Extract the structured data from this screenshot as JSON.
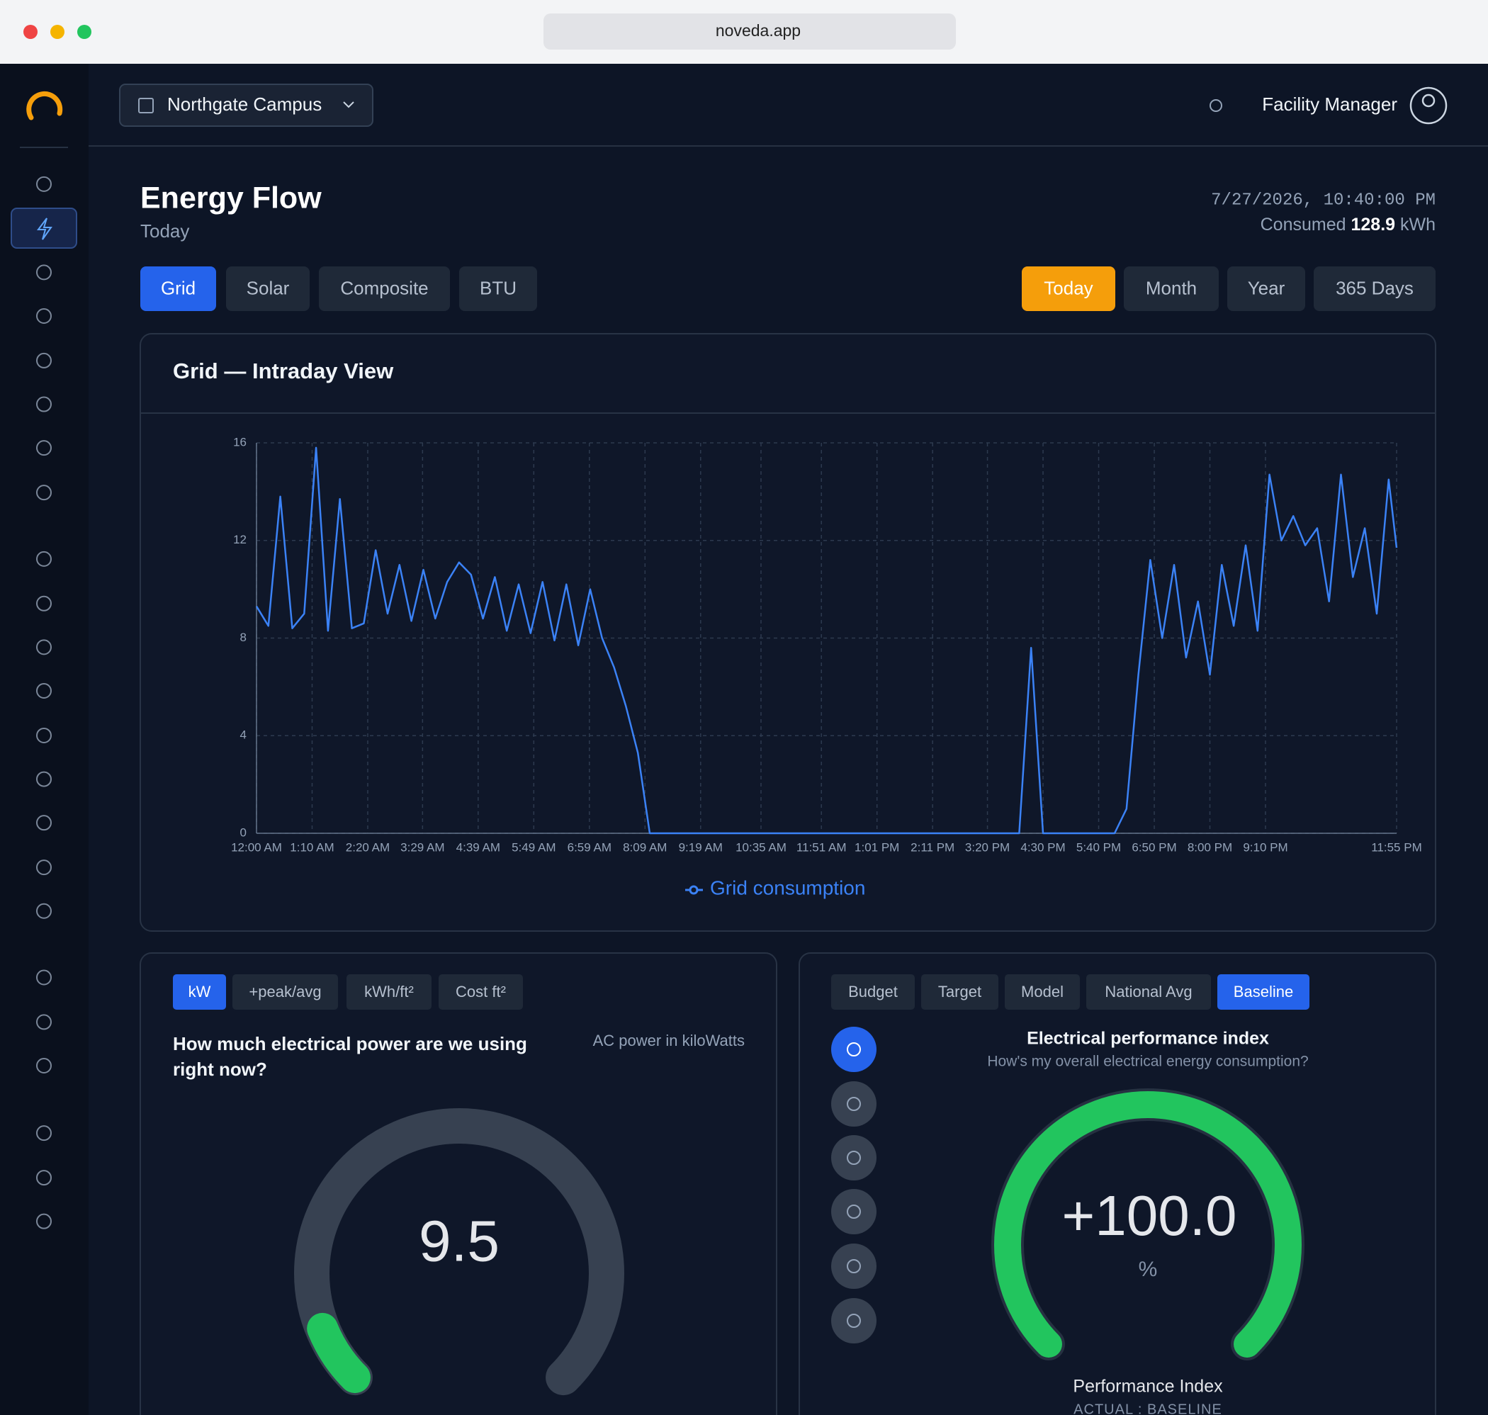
{
  "browser": {
    "url": "noveda.app"
  },
  "header": {
    "site": "Northgate Campus",
    "user": "Facility Manager"
  },
  "page": {
    "title": "Energy Flow",
    "subtitle": "Today",
    "timestamp": "7/27/2026, 10:40:00 PM",
    "consumed_label": "Consumed",
    "consumed_value": "128.9",
    "consumed_unit": "kWh"
  },
  "source_tabs": [
    "Grid",
    "Solar",
    "Composite",
    "BTU"
  ],
  "period_tabs": [
    "Today",
    "Month",
    "Year",
    "365 Days"
  ],
  "chart_data": {
    "type": "line",
    "title": "Grid — Intraday View",
    "x": [
      0,
      15,
      30,
      45,
      60,
      75,
      90,
      105,
      120,
      135,
      150,
      165,
      180,
      195,
      210,
      225,
      240,
      255,
      270,
      285,
      300,
      315,
      330,
      345,
      360,
      375,
      390,
      405,
      420,
      435,
      450,
      465,
      480,
      495,
      510,
      525,
      540,
      555,
      570,
      585,
      600,
      615,
      630,
      645,
      660,
      675,
      690,
      705,
      720,
      735,
      750,
      765,
      780,
      795,
      810,
      825,
      840,
      855,
      870,
      885,
      900,
      915,
      930,
      945,
      960,
      975,
      990,
      1005,
      1020,
      1035,
      1050,
      1065,
      1080,
      1095,
      1110,
      1125,
      1140,
      1155,
      1170,
      1185,
      1200,
      1215,
      1230,
      1245,
      1260,
      1275,
      1290,
      1305,
      1320,
      1335,
      1350,
      1365,
      1380,
      1395,
      1410,
      1425,
      1435
    ],
    "series": [
      {
        "name": "Grid consumption",
        "color": "#3b82f6",
        "values": [
          9.3,
          8.5,
          13.8,
          8.4,
          9.0,
          15.8,
          8.3,
          13.7,
          8.4,
          8.6,
          11.6,
          9.0,
          11.0,
          8.7,
          10.8,
          8.8,
          10.3,
          11.1,
          10.6,
          8.8,
          10.5,
          8.3,
          10.2,
          8.2,
          10.3,
          7.9,
          10.2,
          7.7,
          10.0,
          8.0,
          6.8,
          5.2,
          3.3,
          0,
          0,
          0,
          0,
          0,
          0,
          0,
          0,
          0,
          0,
          0,
          0,
          0,
          0,
          0,
          0,
          0,
          0,
          0,
          0,
          0,
          0,
          0,
          0,
          0,
          0,
          0,
          0,
          0,
          0,
          0,
          0,
          7.6,
          0,
          0,
          0,
          0,
          0,
          0,
          0,
          1.0,
          6.5,
          11.2,
          8.0,
          11.0,
          7.2,
          9.5,
          6.5,
          11.0,
          8.5,
          11.8,
          8.3,
          14.7,
          12.0,
          13.0,
          11.8,
          12.5,
          9.5,
          14.7,
          10.5,
          12.5,
          9.0,
          14.5,
          11.7
        ]
      }
    ],
    "xlim": [
      0,
      1435
    ],
    "ylim": [
      0,
      16
    ],
    "yticks": [
      0,
      4,
      8,
      12,
      16
    ],
    "xticks": [
      {
        "value": 0,
        "label": "12:00 AM"
      },
      {
        "value": 70,
        "label": "1:10 AM"
      },
      {
        "value": 140,
        "label": "2:20 AM"
      },
      {
        "value": 209,
        "label": "3:29 AM"
      },
      {
        "value": 279,
        "label": "4:39 AM"
      },
      {
        "value": 349,
        "label": "5:49 AM"
      },
      {
        "value": 419,
        "label": "6:59 AM"
      },
      {
        "value": 489,
        "label": "8:09 AM"
      },
      {
        "value": 559,
        "label": "9:19 AM"
      },
      {
        "value": 635,
        "label": "10:35 AM"
      },
      {
        "value": 711,
        "label": "11:51 AM"
      },
      {
        "value": 781,
        "label": "1:01 PM"
      },
      {
        "value": 851,
        "label": "2:11 PM"
      },
      {
        "value": 920,
        "label": "3:20 PM"
      },
      {
        "value": 990,
        "label": "4:30 PM"
      },
      {
        "value": 1060,
        "label": "5:40 PM"
      },
      {
        "value": 1130,
        "label": "6:50 PM"
      },
      {
        "value": 1200,
        "label": "8:00 PM"
      },
      {
        "value": 1270,
        "label": "9:10 PM"
      },
      {
        "value": 1435,
        "label": "11:55 PM"
      }
    ],
    "grid": true
  },
  "power_panel": {
    "tabs": [
      "kW",
      "+peak/avg",
      "kWh/ft²",
      "Cost ft²"
    ],
    "question": "How much electrical power are we using right now?",
    "unit_note": "AC power in kiloWatts",
    "value": "9.5"
  },
  "performance_panel": {
    "tabs": [
      "Budget",
      "Target",
      "Model",
      "National Avg",
      "Baseline"
    ],
    "title": "Electrical performance index",
    "subtitle": "How's my overall electrical energy consumption?",
    "value": "+100.0",
    "unit": "%",
    "label": "Performance Index",
    "sublabel": "ACTUAL : BASELINE"
  }
}
